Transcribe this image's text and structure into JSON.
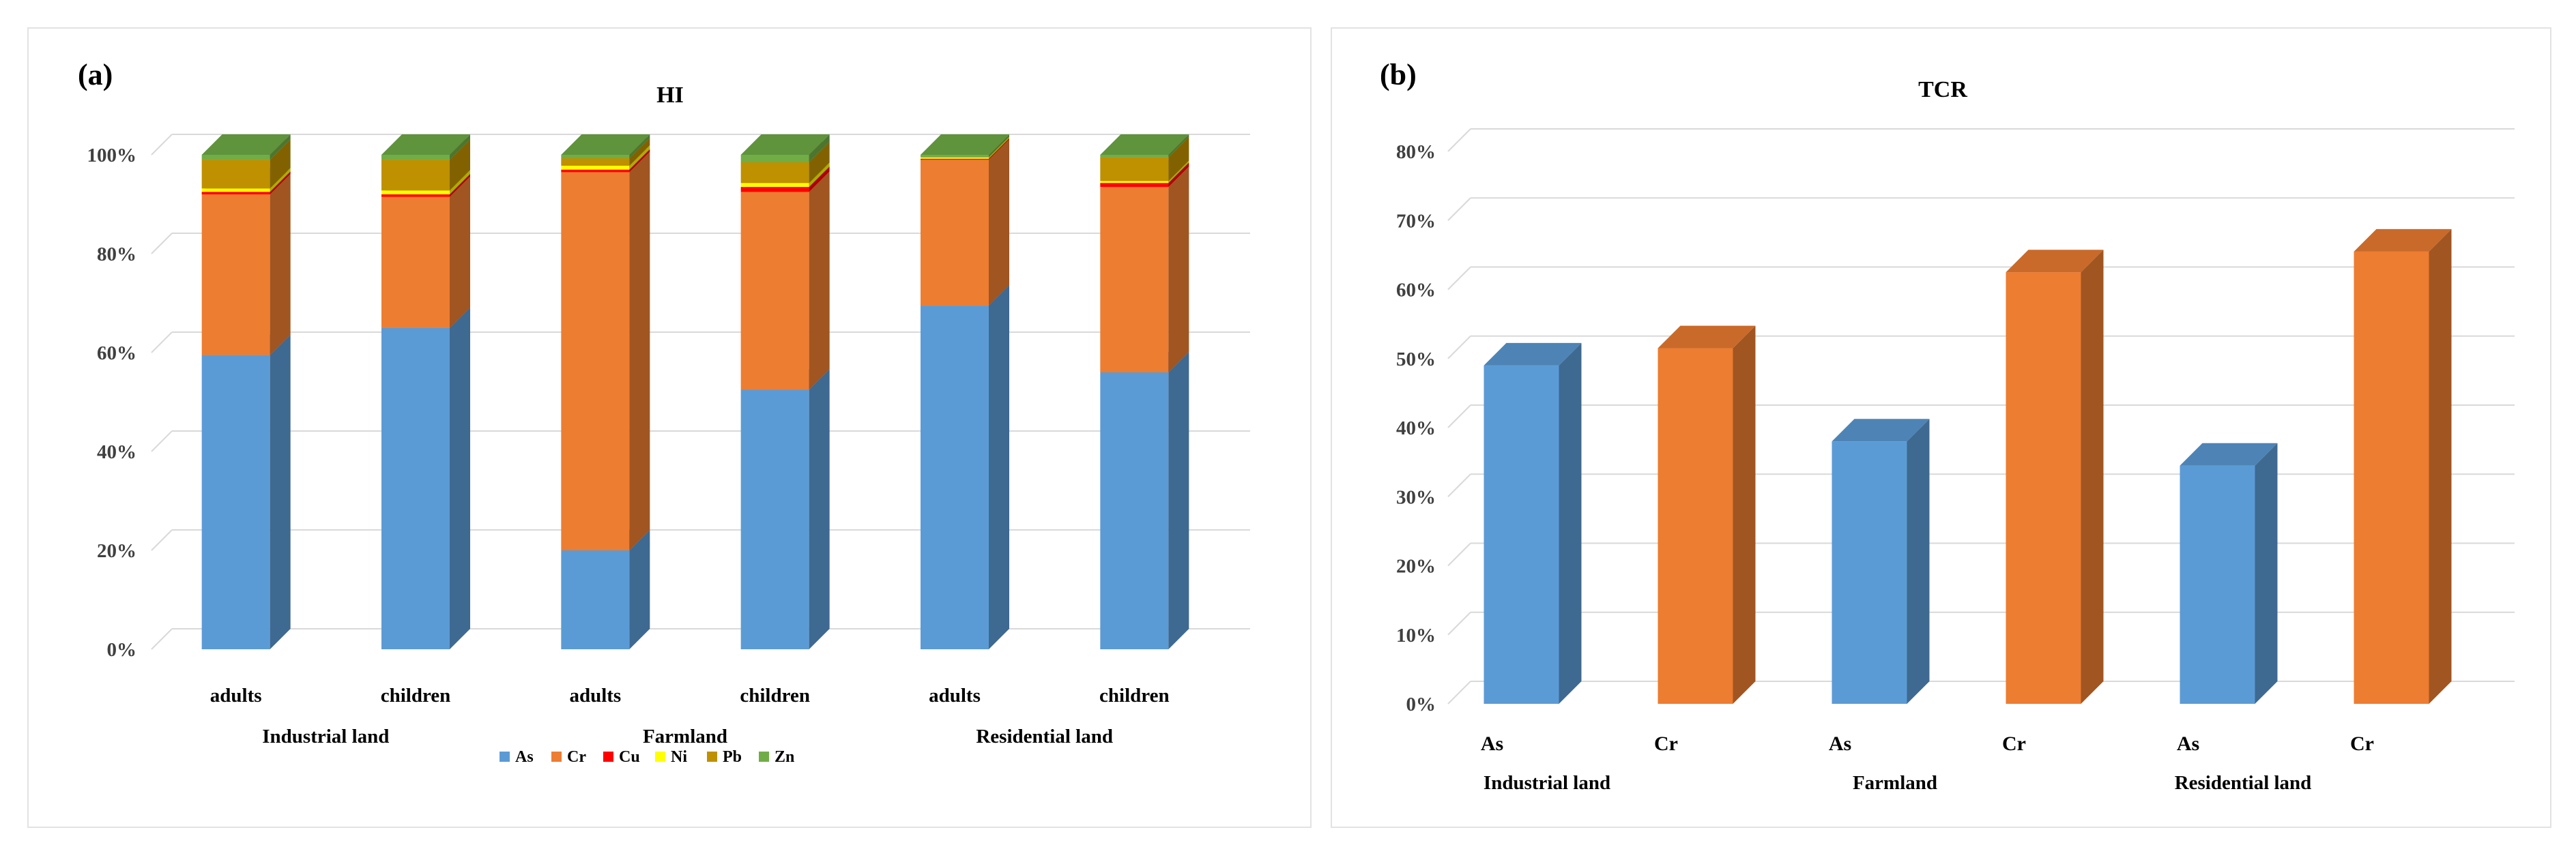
{
  "figure": {
    "panel_a_label": "(a)",
    "panel_b_label": "(b)"
  },
  "chart_data": [
    {
      "type": "bar",
      "stacked": "percent",
      "title": "HI",
      "categories": [
        "adults",
        "children",
        "adults",
        "children",
        "adults",
        "children"
      ],
      "groups": [
        "Industrial land",
        "Farmland",
        "Residential land"
      ],
      "y_ticks": [
        "0%",
        "20%",
        "40%",
        "60%",
        "80%",
        "100%"
      ],
      "ylim": [
        0,
        100
      ],
      "legend_position": "bottom",
      "series": [
        {
          "name": "As",
          "color": "#5B9BD5",
          "values": [
            59.5,
            65,
            20,
            52.5,
            69.5,
            56
          ]
        },
        {
          "name": "Cr",
          "color": "#ED7D31",
          "values": [
            32.5,
            26.5,
            76.5,
            40,
            29.5,
            37.5
          ]
        },
        {
          "name": "Cu",
          "color": "#FF0000",
          "values": [
            0.5,
            0.5,
            0.5,
            1,
            0.2,
            0.8
          ]
        },
        {
          "name": "Ni",
          "color": "#FFFF00",
          "values": [
            0.7,
            0.8,
            0.8,
            0.8,
            0.3,
            0.4
          ]
        },
        {
          "name": "Pb",
          "color": "#BF9000",
          "values": [
            5.8,
            6.2,
            1.5,
            4.2,
            0,
            4.8
          ]
        },
        {
          "name": "Zn",
          "color": "#70AD47",
          "values": [
            1,
            1,
            0.7,
            1.5,
            0.5,
            0.5
          ]
        }
      ]
    },
    {
      "type": "bar",
      "title": "TCR",
      "categories": [
        "As",
        "Cr",
        "As",
        "Cr",
        "As",
        "Cr"
      ],
      "groups": [
        "Industrial land",
        "Farmland",
        "Residential land"
      ],
      "y_ticks": [
        "0%",
        "10%",
        "20%",
        "30%",
        "40%",
        "50%",
        "60%",
        "70%",
        "80%"
      ],
      "ylim": [
        0,
        80
      ],
      "values": [
        49,
        51.5,
        38,
        62.5,
        34.5,
        65.5
      ],
      "colors": [
        "#5B9BD5",
        "#ED7D31",
        "#5B9BD5",
        "#ED7D31",
        "#5B9BD5",
        "#ED7D31"
      ]
    }
  ]
}
